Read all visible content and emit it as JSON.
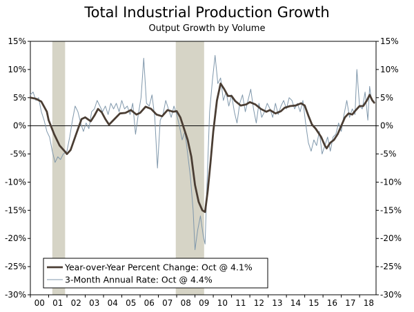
{
  "title": "Total Industrial Production Growth",
  "subtitle": "Output Growth by Volume",
  "chart_data": {
    "type": "line",
    "title": "Total Industrial Production Growth",
    "subtitle": "Output Growth by Volume",
    "x_tick_labels": [
      "00",
      "01",
      "02",
      "03",
      "04",
      "05",
      "06",
      "07",
      "08",
      "09",
      "10",
      "11",
      "12",
      "13",
      "14",
      "15",
      "16",
      "17",
      "18"
    ],
    "y_ticks": [
      15,
      10,
      5,
      0,
      -5,
      -10,
      -15,
      -20,
      -25,
      -30
    ],
    "y_tick_labels": [
      "15%",
      "10%",
      "5%",
      "0%",
      "-5%",
      "-10%",
      "-15%",
      "-20%",
      "-25%",
      "-30%"
    ],
    "ylim": [
      -30,
      15
    ],
    "xlim": [
      2000.0,
      2018.9
    ],
    "grid": false,
    "legend_position": "bottom-left",
    "recessions": [
      [
        2001.2,
        2001.9
      ],
      [
        2007.95,
        2009.5
      ]
    ],
    "colors": {
      "yoy": "#4a3d33",
      "annual3m": "#7f97ab",
      "recession": "#d6d4c6"
    },
    "series": [
      {
        "name": "Year-over-Year Percent Change: Oct @ 4.1%",
        "points": [
          [
            2000.0,
            5.0
          ],
          [
            2000.3,
            4.8
          ],
          [
            2000.6,
            4.3
          ],
          [
            2000.9,
            2.5
          ],
          [
            2001.0,
            1.0
          ],
          [
            2001.3,
            -1.5
          ],
          [
            2001.6,
            -3.5
          ],
          [
            2001.9,
            -4.6
          ],
          [
            2002.0,
            -5.0
          ],
          [
            2002.2,
            -4.3
          ],
          [
            2002.5,
            -1.5
          ],
          [
            2002.8,
            1.2
          ],
          [
            2003.0,
            1.5
          ],
          [
            2003.3,
            0.8
          ],
          [
            2003.5,
            1.8
          ],
          [
            2003.7,
            3.0
          ],
          [
            2003.9,
            2.4
          ],
          [
            2004.1,
            1.2
          ],
          [
            2004.3,
            0.2
          ],
          [
            2004.6,
            1.2
          ],
          [
            2004.9,
            2.2
          ],
          [
            2005.2,
            2.3
          ],
          [
            2005.5,
            2.8
          ],
          [
            2005.8,
            2.0
          ],
          [
            2006.0,
            2.3
          ],
          [
            2006.3,
            3.4
          ],
          [
            2006.6,
            3.0
          ],
          [
            2006.9,
            2.0
          ],
          [
            2007.2,
            1.7
          ],
          [
            2007.5,
            2.8
          ],
          [
            2007.8,
            2.5
          ],
          [
            2008.0,
            2.6
          ],
          [
            2008.2,
            1.5
          ],
          [
            2008.4,
            -0.5
          ],
          [
            2008.6,
            -2.5
          ],
          [
            2008.8,
            -5.5
          ],
          [
            2009.0,
            -10.5
          ],
          [
            2009.2,
            -13.5
          ],
          [
            2009.4,
            -15.0
          ],
          [
            2009.55,
            -15.3
          ],
          [
            2009.7,
            -11.5
          ],
          [
            2009.85,
            -6.5
          ],
          [
            2010.0,
            -1.0
          ],
          [
            2010.2,
            4.5
          ],
          [
            2010.4,
            7.5
          ],
          [
            2010.6,
            6.5
          ],
          [
            2010.8,
            5.3
          ],
          [
            2011.0,
            5.3
          ],
          [
            2011.2,
            4.4
          ],
          [
            2011.5,
            3.6
          ],
          [
            2011.8,
            3.8
          ],
          [
            2012.0,
            4.2
          ],
          [
            2012.3,
            3.8
          ],
          [
            2012.6,
            3.0
          ],
          [
            2012.9,
            2.5
          ],
          [
            2013.1,
            2.8
          ],
          [
            2013.4,
            2.2
          ],
          [
            2013.7,
            2.6
          ],
          [
            2013.9,
            3.2
          ],
          [
            2014.2,
            3.5
          ],
          [
            2014.5,
            3.6
          ],
          [
            2014.8,
            4.0
          ],
          [
            2015.0,
            3.6
          ],
          [
            2015.2,
            1.8
          ],
          [
            2015.4,
            0.2
          ],
          [
            2015.6,
            -0.5
          ],
          [
            2015.9,
            -2.0
          ],
          [
            2016.1,
            -3.5
          ],
          [
            2016.2,
            -4.0
          ],
          [
            2016.4,
            -3.0
          ],
          [
            2016.6,
            -2.5
          ],
          [
            2016.8,
            -1.5
          ],
          [
            2017.0,
            0.0
          ],
          [
            2017.2,
            1.5
          ],
          [
            2017.4,
            2.2
          ],
          [
            2017.6,
            2.0
          ],
          [
            2017.8,
            2.8
          ],
          [
            2018.0,
            3.5
          ],
          [
            2018.2,
            3.5
          ],
          [
            2018.4,
            4.5
          ],
          [
            2018.55,
            5.5
          ],
          [
            2018.7,
            4.5
          ],
          [
            2018.8,
            4.1
          ]
        ]
      },
      {
        "name": "3-Month Annual Rate: Oct @ 4.4%",
        "points": [
          [
            2000.0,
            5.5
          ],
          [
            2000.15,
            6.0
          ],
          [
            2000.3,
            4.5
          ],
          [
            2000.45,
            5.0
          ],
          [
            2000.6,
            2.5
          ],
          [
            2000.75,
            1.0
          ],
          [
            2000.9,
            -1.0
          ],
          [
            2001.05,
            -2.0
          ],
          [
            2001.2,
            -4.5
          ],
          [
            2001.35,
            -6.5
          ],
          [
            2001.5,
            -5.5
          ],
          [
            2001.65,
            -6.0
          ],
          [
            2001.8,
            -5.0
          ],
          [
            2002.0,
            -4.5
          ],
          [
            2002.15,
            -2.0
          ],
          [
            2002.3,
            1.0
          ],
          [
            2002.45,
            3.5
          ],
          [
            2002.6,
            2.5
          ],
          [
            2002.75,
            0.5
          ],
          [
            2002.9,
            -1.0
          ],
          [
            2003.05,
            0.5
          ],
          [
            2003.2,
            -0.5
          ],
          [
            2003.35,
            2.5
          ],
          [
            2003.5,
            3.0
          ],
          [
            2003.65,
            4.5
          ],
          [
            2003.8,
            3.5
          ],
          [
            2003.95,
            2.5
          ],
          [
            2004.1,
            3.5
          ],
          [
            2004.25,
            2.0
          ],
          [
            2004.4,
            4.0
          ],
          [
            2004.55,
            3.0
          ],
          [
            2004.7,
            4.0
          ],
          [
            2004.85,
            2.5
          ],
          [
            2005.0,
            4.5
          ],
          [
            2005.15,
            3.0
          ],
          [
            2005.3,
            3.5
          ],
          [
            2005.45,
            2.0
          ],
          [
            2005.6,
            4.0
          ],
          [
            2005.75,
            -1.5
          ],
          [
            2005.9,
            2.0
          ],
          [
            2006.05,
            5.0
          ],
          [
            2006.2,
            12.0
          ],
          [
            2006.35,
            4.0
          ],
          [
            2006.5,
            3.5
          ],
          [
            2006.65,
            5.5
          ],
          [
            2006.8,
            1.5
          ],
          [
            2006.95,
            -7.5
          ],
          [
            2007.1,
            1.0
          ],
          [
            2007.25,
            2.0
          ],
          [
            2007.4,
            4.5
          ],
          [
            2007.55,
            3.0
          ],
          [
            2007.7,
            1.5
          ],
          [
            2007.85,
            3.5
          ],
          [
            2008.0,
            2.0
          ],
          [
            2008.15,
            0.0
          ],
          [
            2008.3,
            -2.5
          ],
          [
            2008.45,
            -1.0
          ],
          [
            2008.6,
            -5.0
          ],
          [
            2008.75,
            -9.0
          ],
          [
            2008.9,
            -15.0
          ],
          [
            2009.0,
            -22.0
          ],
          [
            2009.15,
            -18.5
          ],
          [
            2009.3,
            -16.0
          ],
          [
            2009.45,
            -19.5
          ],
          [
            2009.55,
            -21.0
          ],
          [
            2009.65,
            -11.0
          ],
          [
            2009.8,
            2.5
          ],
          [
            2009.95,
            8.0
          ],
          [
            2010.1,
            12.5
          ],
          [
            2010.25,
            7.5
          ],
          [
            2010.4,
            8.5
          ],
          [
            2010.55,
            4.5
          ],
          [
            2010.7,
            6.0
          ],
          [
            2010.85,
            3.5
          ],
          [
            2011.0,
            5.5
          ],
          [
            2011.15,
            2.5
          ],
          [
            2011.3,
            0.5
          ],
          [
            2011.45,
            4.0
          ],
          [
            2011.6,
            5.5
          ],
          [
            2011.75,
            2.5
          ],
          [
            2011.9,
            4.5
          ],
          [
            2012.05,
            6.5
          ],
          [
            2012.2,
            3.0
          ],
          [
            2012.35,
            0.5
          ],
          [
            2012.5,
            4.0
          ],
          [
            2012.65,
            1.5
          ],
          [
            2012.8,
            2.5
          ],
          [
            2012.95,
            4.0
          ],
          [
            2013.1,
            3.0
          ],
          [
            2013.25,
            1.5
          ],
          [
            2013.4,
            4.0
          ],
          [
            2013.55,
            2.0
          ],
          [
            2013.7,
            3.5
          ],
          [
            2013.85,
            4.5
          ],
          [
            2014.0,
            3.0
          ],
          [
            2014.15,
            5.0
          ],
          [
            2014.3,
            4.5
          ],
          [
            2014.45,
            3.0
          ],
          [
            2014.6,
            4.0
          ],
          [
            2014.75,
            2.5
          ],
          [
            2014.9,
            4.5
          ],
          [
            2015.05,
            0.5
          ],
          [
            2015.2,
            -3.0
          ],
          [
            2015.35,
            -4.5
          ],
          [
            2015.5,
            -2.5
          ],
          [
            2015.65,
            -3.5
          ],
          [
            2015.8,
            -1.0
          ],
          [
            2015.95,
            -5.0
          ],
          [
            2016.1,
            -3.5
          ],
          [
            2016.25,
            -2.0
          ],
          [
            2016.4,
            -4.5
          ],
          [
            2016.55,
            -2.0
          ],
          [
            2016.7,
            -1.5
          ],
          [
            2016.85,
            0.5
          ],
          [
            2017.0,
            -1.0
          ],
          [
            2017.15,
            2.0
          ],
          [
            2017.3,
            4.5
          ],
          [
            2017.45,
            1.5
          ],
          [
            2017.6,
            3.0
          ],
          [
            2017.75,
            2.0
          ],
          [
            2017.85,
            10.0
          ],
          [
            2018.0,
            3.5
          ],
          [
            2018.15,
            3.0
          ],
          [
            2018.3,
            6.0
          ],
          [
            2018.45,
            1.0
          ],
          [
            2018.55,
            7.0
          ],
          [
            2018.65,
            4.5
          ],
          [
            2018.8,
            4.4
          ]
        ]
      }
    ]
  }
}
